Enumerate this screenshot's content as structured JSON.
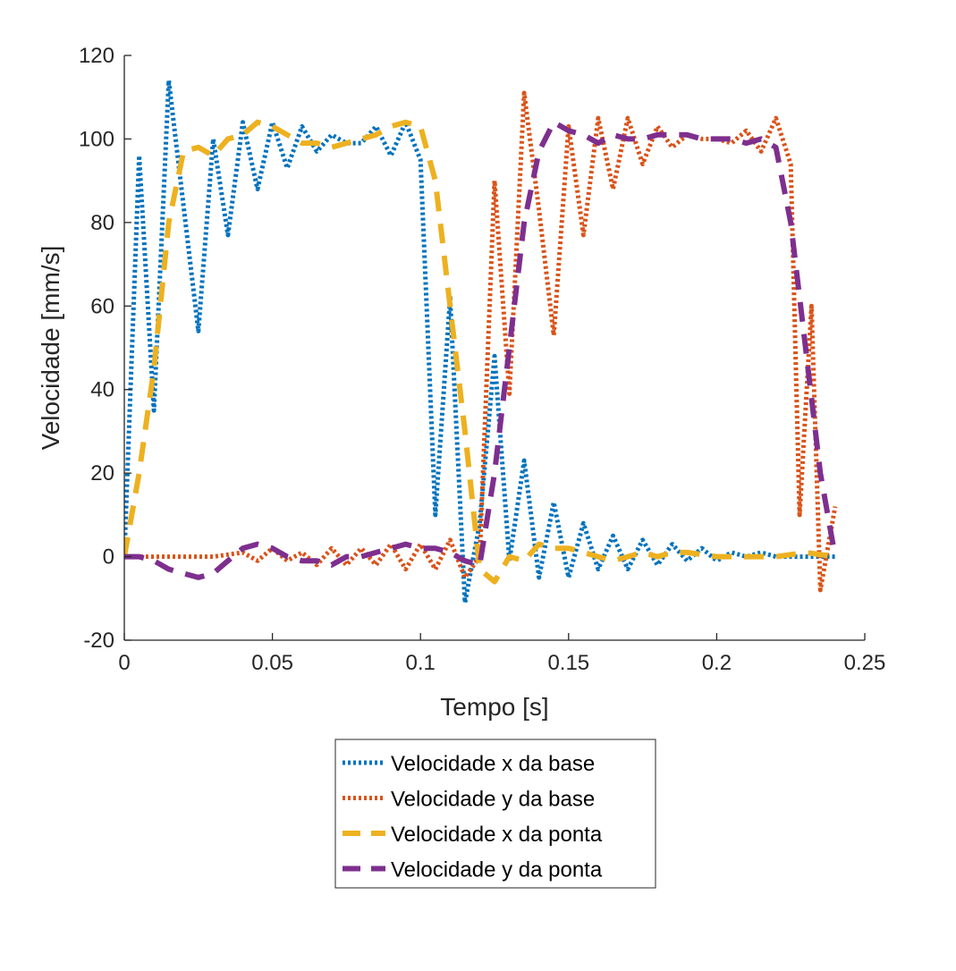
{
  "chart_data": {
    "type": "line",
    "title": "",
    "xlabel": "Tempo [s]",
    "ylabel": "Velocidade [mm/s]",
    "xlim": [
      0,
      0.25
    ],
    "ylim": [
      -20,
      120
    ],
    "xticks": [
      0,
      0.05,
      0.1,
      0.15,
      0.2,
      0.25
    ],
    "xtick_labels": [
      "0",
      "0.05",
      "0.1",
      "0.15",
      "0.2",
      "0.25"
    ],
    "yticks": [
      -20,
      0,
      20,
      40,
      60,
      80,
      100,
      120
    ],
    "ytick_labels": [
      "-20",
      "0",
      "20",
      "40",
      "60",
      "80",
      "100",
      "120"
    ],
    "grid": false,
    "legend_position": "bottom-outside",
    "series": [
      {
        "name": "Velocidade x da base",
        "color": "#0072BD",
        "style": "dotted",
        "points": [
          [
            0,
            0
          ],
          [
            0.005,
            96
          ],
          [
            0.01,
            35
          ],
          [
            0.015,
            114
          ],
          [
            0.02,
            84
          ],
          [
            0.025,
            54
          ],
          [
            0.03,
            100
          ],
          [
            0.035,
            77
          ],
          [
            0.04,
            104
          ],
          [
            0.045,
            88
          ],
          [
            0.05,
            104
          ],
          [
            0.055,
            93
          ],
          [
            0.06,
            103
          ],
          [
            0.065,
            97
          ],
          [
            0.07,
            101
          ],
          [
            0.075,
            99
          ],
          [
            0.08,
            99
          ],
          [
            0.085,
            103
          ],
          [
            0.09,
            96
          ],
          [
            0.095,
            104
          ],
          [
            0.1,
            95
          ],
          [
            0.105,
            10
          ],
          [
            0.11,
            62
          ],
          [
            0.115,
            -11
          ],
          [
            0.12,
            8
          ],
          [
            0.125,
            48
          ],
          [
            0.13,
            -1
          ],
          [
            0.135,
            23
          ],
          [
            0.14,
            -5
          ],
          [
            0.145,
            13
          ],
          [
            0.15,
            -5
          ],
          [
            0.155,
            8
          ],
          [
            0.16,
            -3
          ],
          [
            0.165,
            5
          ],
          [
            0.17,
            -3
          ],
          [
            0.175,
            4
          ],
          [
            0.18,
            -2
          ],
          [
            0.185,
            3
          ],
          [
            0.19,
            -1
          ],
          [
            0.195,
            2
          ],
          [
            0.2,
            -1
          ],
          [
            0.205,
            1
          ],
          [
            0.21,
            0
          ],
          [
            0.215,
            1
          ],
          [
            0.22,
            0
          ],
          [
            0.225,
            0
          ],
          [
            0.23,
            0
          ],
          [
            0.235,
            0
          ],
          [
            0.24,
            0
          ]
        ]
      },
      {
        "name": "Velocidade y da base",
        "color": "#D95319",
        "style": "dotted",
        "points": [
          [
            0,
            0
          ],
          [
            0.01,
            0
          ],
          [
            0.02,
            0
          ],
          [
            0.03,
            0
          ],
          [
            0.04,
            1
          ],
          [
            0.045,
            -1
          ],
          [
            0.05,
            2
          ],
          [
            0.055,
            -1
          ],
          [
            0.06,
            1
          ],
          [
            0.065,
            -2
          ],
          [
            0.07,
            2
          ],
          [
            0.075,
            -2
          ],
          [
            0.08,
            2
          ],
          [
            0.085,
            -2
          ],
          [
            0.09,
            3
          ],
          [
            0.095,
            -3
          ],
          [
            0.1,
            3
          ],
          [
            0.105,
            -3
          ],
          [
            0.11,
            4
          ],
          [
            0.115,
            -5
          ],
          [
            0.12,
            0
          ],
          [
            0.125,
            90
          ],
          [
            0.13,
            39
          ],
          [
            0.135,
            111
          ],
          [
            0.14,
            83
          ],
          [
            0.145,
            53
          ],
          [
            0.15,
            103
          ],
          [
            0.155,
            77
          ],
          [
            0.16,
            105
          ],
          [
            0.165,
            88
          ],
          [
            0.17,
            105
          ],
          [
            0.175,
            94
          ],
          [
            0.18,
            103
          ],
          [
            0.185,
            98
          ],
          [
            0.19,
            101
          ],
          [
            0.195,
            100
          ],
          [
            0.2,
            100
          ],
          [
            0.205,
            99
          ],
          [
            0.21,
            102
          ],
          [
            0.215,
            97
          ],
          [
            0.22,
            105
          ],
          [
            0.225,
            94
          ],
          [
            0.228,
            10
          ],
          [
            0.232,
            60
          ],
          [
            0.235,
            -8
          ],
          [
            0.24,
            12
          ]
        ]
      },
      {
        "name": "Velocidade x da ponta",
        "color": "#EDB120",
        "style": "dashed",
        "points": [
          [
            0,
            0
          ],
          [
            0.005,
            20
          ],
          [
            0.01,
            45
          ],
          [
            0.015,
            80
          ],
          [
            0.02,
            97
          ],
          [
            0.025,
            98
          ],
          [
            0.03,
            96
          ],
          [
            0.035,
            100
          ],
          [
            0.04,
            101
          ],
          [
            0.045,
            104
          ],
          [
            0.05,
            103
          ],
          [
            0.055,
            101
          ],
          [
            0.06,
            99
          ],
          [
            0.065,
            99
          ],
          [
            0.07,
            98
          ],
          [
            0.075,
            99
          ],
          [
            0.08,
            100
          ],
          [
            0.085,
            101
          ],
          [
            0.09,
            103
          ],
          [
            0.095,
            104
          ],
          [
            0.1,
            103
          ],
          [
            0.105,
            90
          ],
          [
            0.11,
            60
          ],
          [
            0.115,
            30
          ],
          [
            0.12,
            -3
          ],
          [
            0.125,
            -6
          ],
          [
            0.13,
            0
          ],
          [
            0.135,
            -1
          ],
          [
            0.14,
            3
          ],
          [
            0.145,
            2
          ],
          [
            0.15,
            2
          ],
          [
            0.155,
            1
          ],
          [
            0.16,
            0
          ],
          [
            0.165,
            -1
          ],
          [
            0.17,
            0
          ],
          [
            0.175,
            1
          ],
          [
            0.18,
            0
          ],
          [
            0.185,
            1
          ],
          [
            0.19,
            1
          ],
          [
            0.2,
            0
          ],
          [
            0.21,
            0
          ],
          [
            0.22,
            0
          ],
          [
            0.23,
            1
          ],
          [
            0.24,
            0
          ]
        ]
      },
      {
        "name": "Velocidade y da ponta",
        "color": "#7E2F8E",
        "style": "dashed",
        "points": [
          [
            0,
            0
          ],
          [
            0.005,
            0
          ],
          [
            0.01,
            -1
          ],
          [
            0.015,
            -3
          ],
          [
            0.02,
            -4
          ],
          [
            0.025,
            -5
          ],
          [
            0.03,
            -4
          ],
          [
            0.035,
            -1
          ],
          [
            0.04,
            2
          ],
          [
            0.045,
            3
          ],
          [
            0.05,
            2
          ],
          [
            0.055,
            0
          ],
          [
            0.06,
            -1
          ],
          [
            0.065,
            -1
          ],
          [
            0.07,
            -2
          ],
          [
            0.075,
            0
          ],
          [
            0.08,
            0
          ],
          [
            0.085,
            1
          ],
          [
            0.09,
            2
          ],
          [
            0.095,
            3
          ],
          [
            0.1,
            2
          ],
          [
            0.105,
            2
          ],
          [
            0.11,
            1
          ],
          [
            0.115,
            -1
          ],
          [
            0.12,
            -2
          ],
          [
            0.125,
            20
          ],
          [
            0.13,
            50
          ],
          [
            0.135,
            80
          ],
          [
            0.14,
            97
          ],
          [
            0.145,
            104
          ],
          [
            0.15,
            102
          ],
          [
            0.155,
            101
          ],
          [
            0.16,
            99
          ],
          [
            0.165,
            101
          ],
          [
            0.17,
            100
          ],
          [
            0.175,
            100
          ],
          [
            0.18,
            101
          ],
          [
            0.185,
            101
          ],
          [
            0.19,
            101
          ],
          [
            0.195,
            100
          ],
          [
            0.2,
            100
          ],
          [
            0.205,
            100
          ],
          [
            0.21,
            99
          ],
          [
            0.215,
            100
          ],
          [
            0.22,
            98
          ],
          [
            0.225,
            80
          ],
          [
            0.23,
            50
          ],
          [
            0.235,
            20
          ],
          [
            0.24,
            0
          ]
        ]
      }
    ]
  }
}
